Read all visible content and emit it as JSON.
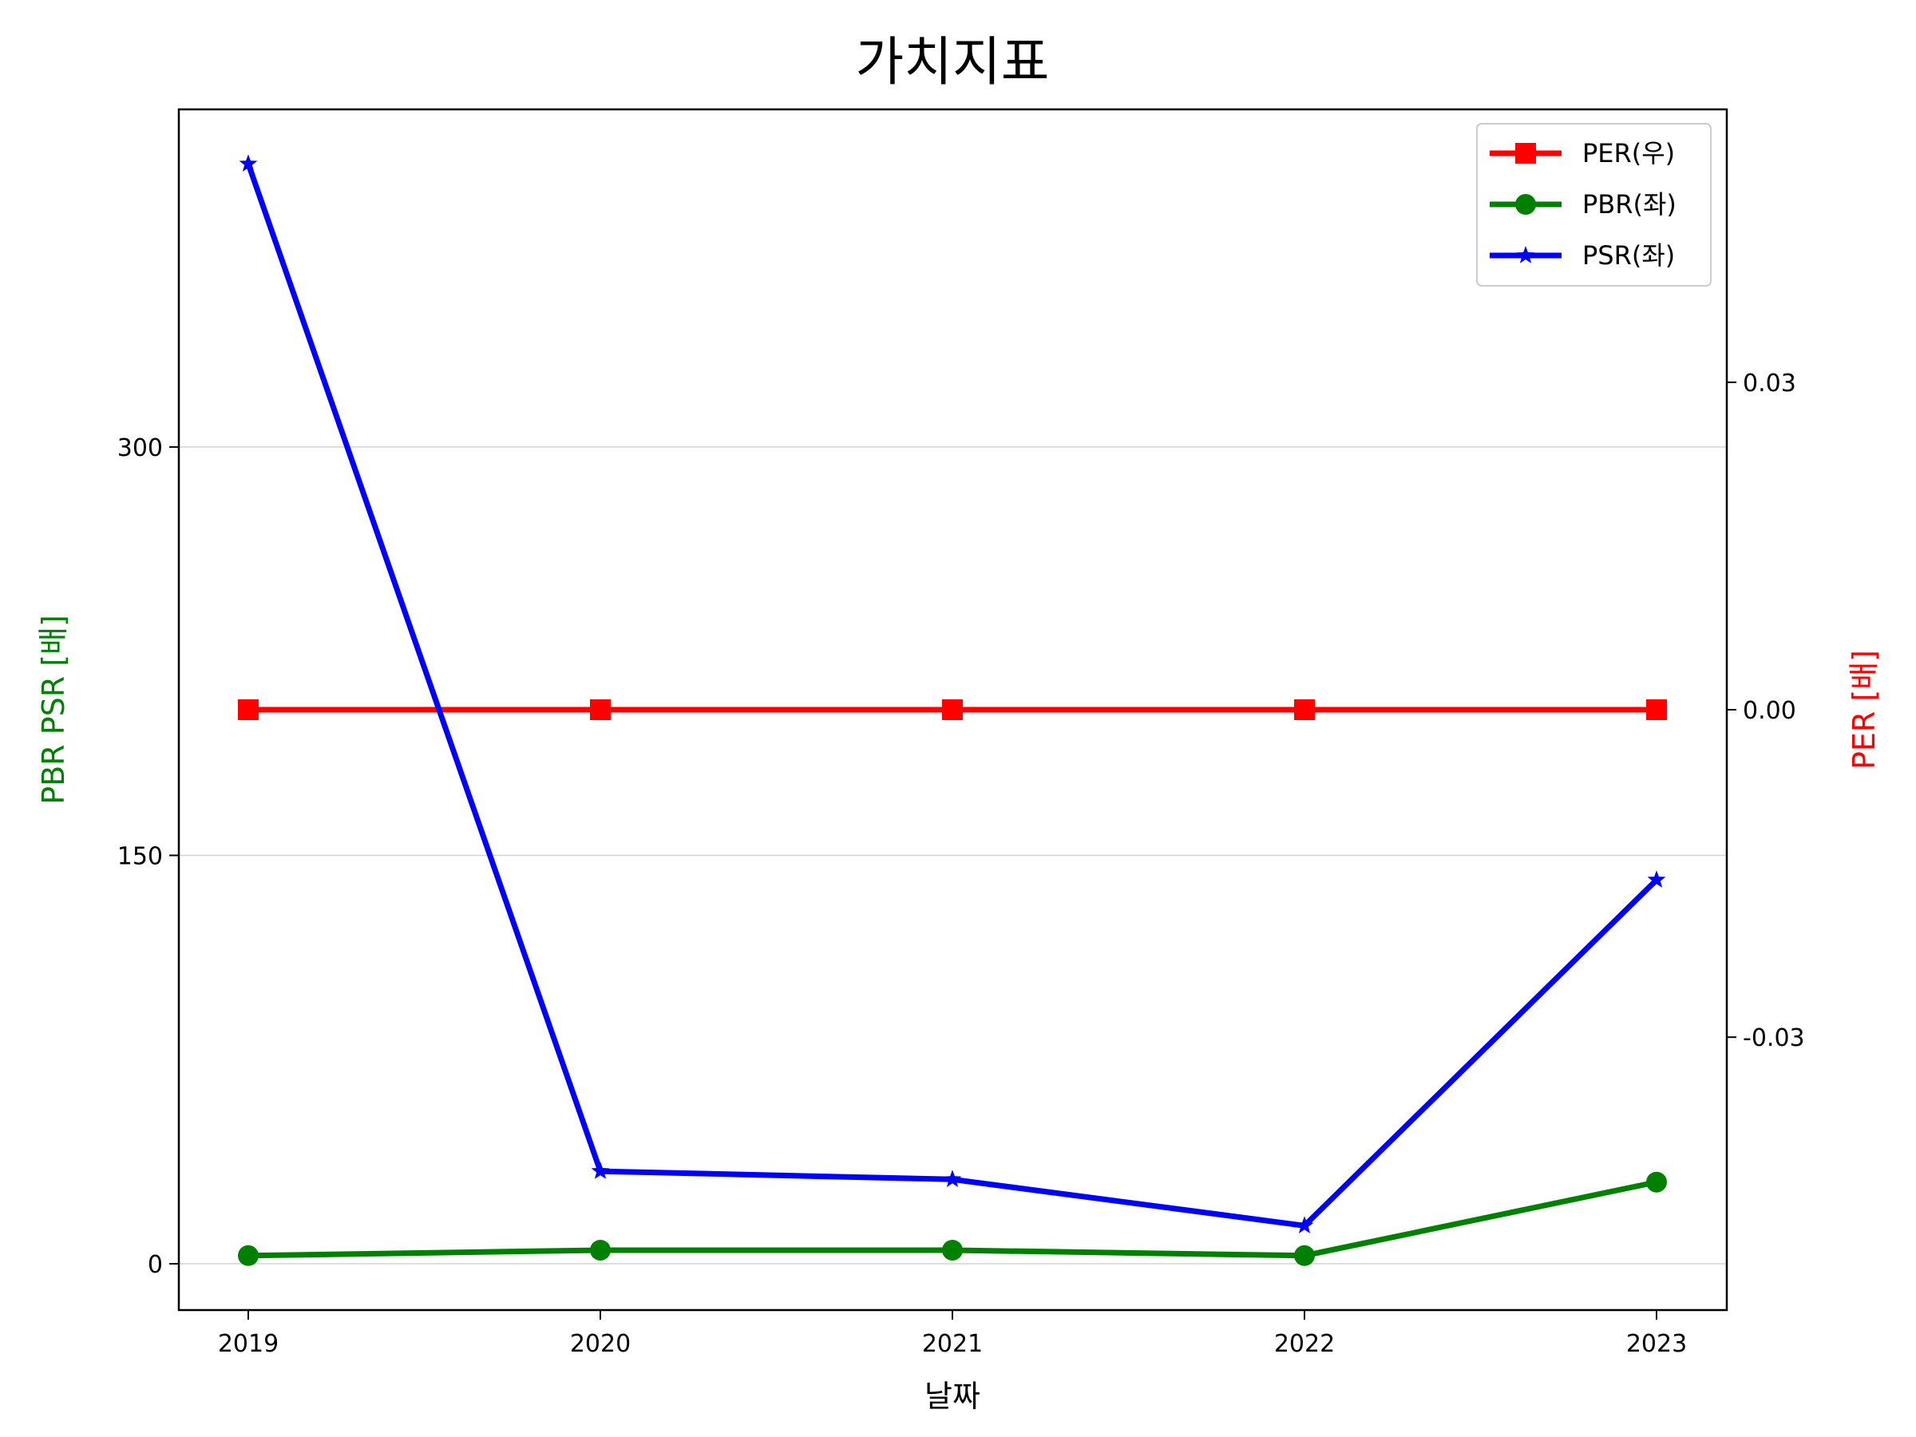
{
  "chart_data": {
    "type": "line",
    "title": "가치지표",
    "xlabel": "날짜",
    "ylabel_left": "PBR PSR [배]",
    "ylabel_right": "PER [배]",
    "x": [
      "2019",
      "2020",
      "2021",
      "2022",
      "2023"
    ],
    "left_axis": {
      "ylim": [
        -17,
        424
      ],
      "ticks": [
        0,
        150,
        300
      ],
      "tick_labels": [
        "0",
        "150",
        "300"
      ],
      "grid": true
    },
    "right_axis": {
      "ylim": [
        -0.055,
        0.055
      ],
      "ticks": [
        -0.03,
        0.0,
        0.03
      ],
      "tick_labels": [
        "-0.03",
        "0.00",
        "0.03"
      ]
    },
    "series": [
      {
        "name": "PER(우)",
        "axis": "right",
        "color": "#ff0000",
        "marker": "square",
        "values": [
          0,
          0,
          0,
          0,
          0
        ]
      },
      {
        "name": "PBR(좌)",
        "axis": "left",
        "color": "#008000",
        "marker": "circle",
        "values": [
          3,
          5,
          5,
          3,
          30
        ]
      },
      {
        "name": "PSR(좌)",
        "axis": "left",
        "color": "#0000ff",
        "marker": "star",
        "values": [
          404,
          34,
          31,
          14,
          141
        ]
      }
    ],
    "legend_position": "top-right",
    "colors": {
      "left_label": "#008000",
      "right_label": "#ff0000",
      "grid": "#d3d3d3"
    }
  }
}
